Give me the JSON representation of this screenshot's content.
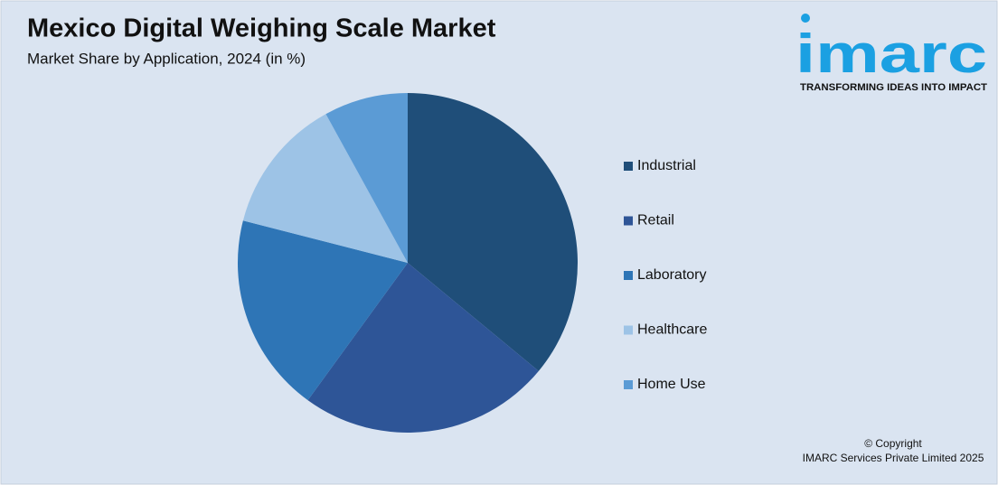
{
  "chart_data": {
    "type": "pie",
    "title": "Mexico Digital Weighing Scale Market",
    "subtitle": "Market Share by Application, 2024 (in %)",
    "categories": [
      "Industrial",
      "Retail",
      "Laboratory",
      "Healthcare",
      "Home Use"
    ],
    "values": [
      36,
      24,
      19,
      13,
      8
    ],
    "colors": [
      "#1f4e79",
      "#2e5597",
      "#2e75b6",
      "#9dc3e6",
      "#5b9bd5"
    ],
    "legend": "right"
  },
  "logo": {
    "name": "imarc",
    "tagline": "TRANSFORMING IDEAS INTO IMPACT"
  },
  "copyright": [
    "© Copyright",
    "IMARC Services Private Limited 2025"
  ]
}
